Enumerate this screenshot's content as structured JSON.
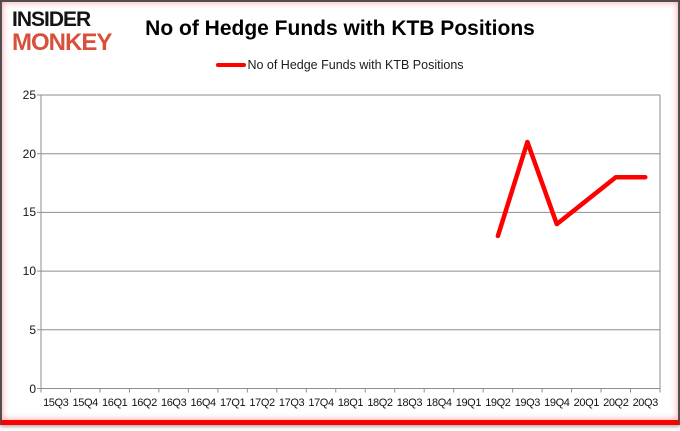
{
  "logo": {
    "line1": "INSIDER",
    "line2": "MONKEY"
  },
  "colors": {
    "logo_accent": "#d8503c",
    "series_red": "#ff0000",
    "grid_gray": "#8e8e8e",
    "frame_border": "#4f4f52",
    "bottom_bar_red": "#ff0000"
  },
  "chart_data": {
    "type": "line",
    "title": "No of Hedge Funds with KTB Positions",
    "xlabel": "",
    "ylabel": "",
    "ylim": [
      0,
      25
    ],
    "yticks": [
      0,
      5,
      10,
      15,
      20,
      25
    ],
    "grid": true,
    "legend_position": "top-center",
    "grid_color": "#8e8e8e",
    "categories": [
      "15Q3",
      "15Q4",
      "16Q1",
      "16Q2",
      "16Q3",
      "16Q4",
      "17Q1",
      "17Q2",
      "17Q3",
      "17Q4",
      "18Q1",
      "18Q2",
      "18Q3",
      "18Q4",
      "19Q1",
      "19Q2",
      "19Q3",
      "19Q4",
      "20Q1",
      "20Q2",
      "20Q3"
    ],
    "series": [
      {
        "name": "No of Hedge Funds with KTB Positions",
        "color": "#ff0000",
        "values": [
          null,
          null,
          null,
          null,
          null,
          null,
          null,
          null,
          null,
          null,
          null,
          null,
          null,
          null,
          null,
          13,
          21,
          14,
          16,
          18,
          18
        ]
      }
    ]
  }
}
